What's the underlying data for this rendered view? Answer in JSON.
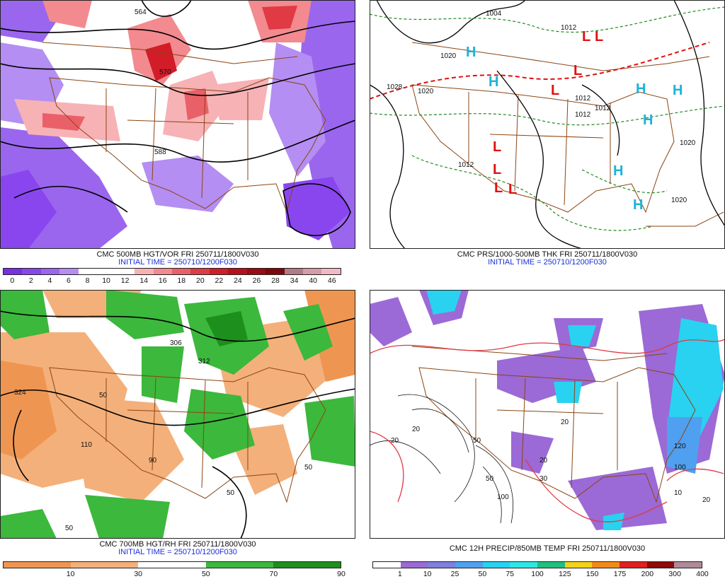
{
  "panels": [
    {
      "id": "p500",
      "title": "CMC 500MB HGT/VOR FRI 250711/1800V030",
      "subtitle": "INITIAL TIME = 250710/1200F030",
      "colorbar": {
        "labels": [
          "0",
          "2",
          "4",
          "6",
          "8",
          "10",
          "12",
          "14",
          "16",
          "18",
          "20",
          "22",
          "24",
          "26",
          "28",
          "34",
          "40",
          "46"
        ],
        "colors": [
          "#7a2ee6",
          "#8a46ee",
          "#9a66ee",
          "#b48ef2",
          "#ffffff",
          "#ffffff",
          "#ffffff",
          "#f7b2b6",
          "#f28a8f",
          "#ea6068",
          "#e03a44",
          "#d21c28",
          "#b80f18",
          "#9c0a12",
          "#7d070c",
          "#b07b86",
          "#d79aa8",
          "#f2b8c6"
        ]
      },
      "contour_labels": [
        "564",
        "570",
        "588"
      ]
    },
    {
      "id": "pprs",
      "title": "CMC PRS/1000-500MB THK FRI 250711/1800V030",
      "subtitle": "INITIAL TIME = 250710/1200F030",
      "contour_labels": [
        "1004",
        "1012",
        "1020",
        "1028",
        "1020",
        "1012",
        "1012",
        "1012",
        "1020",
        "1020",
        "1012"
      ],
      "highs": [
        "H",
        "H",
        "H",
        "H",
        "H",
        "H",
        "H"
      ],
      "lows": [
        "L",
        "L",
        "L",
        "L",
        "L",
        "L",
        "L",
        "L"
      ],
      "colors": {
        "high": "#1bb3d9",
        "low": "#e01010"
      }
    },
    {
      "id": "p700",
      "title": "CMC 700MB HGT/RH FRI 250711/1800V030",
      "subtitle": "INITIAL TIME = 250710/1200F030",
      "colorbar": {
        "labels": [
          "10",
          "30",
          "50",
          "70",
          "90"
        ],
        "colors": [
          "#ef9552",
          "#f4b07a",
          "#ffffff",
          "#3cb83c",
          "#1d8f1d"
        ]
      },
      "contour_labels": [
        "324",
        "306",
        "312",
        "50",
        "50",
        "50",
        "110",
        "90",
        "50"
      ]
    },
    {
      "id": "pprecip",
      "title": "CMC 12H PRECIP/850MB TEMP FRI 250711/1800V030",
      "subtitle": "",
      "colorbar": {
        "labels": [
          "1",
          "10",
          "25",
          "50",
          "75",
          "100",
          "125",
          "150",
          "175",
          "200",
          "300",
          "400"
        ],
        "colors": [
          "#ffffff",
          "#9b6ad6",
          "#7f7fe0",
          "#4fa0f0",
          "#28d2f0",
          "#2ee6e6",
          "#1fbf7f",
          "#f2d21a",
          "#f28a1a",
          "#e01f1f",
          "#8c0a0a",
          "#b08a96"
        ]
      },
      "contour_labels": [
        "20",
        "20",
        "30",
        "20",
        "10",
        "20",
        "50",
        "50",
        "100",
        "120",
        "20",
        "100"
      ]
    }
  ]
}
